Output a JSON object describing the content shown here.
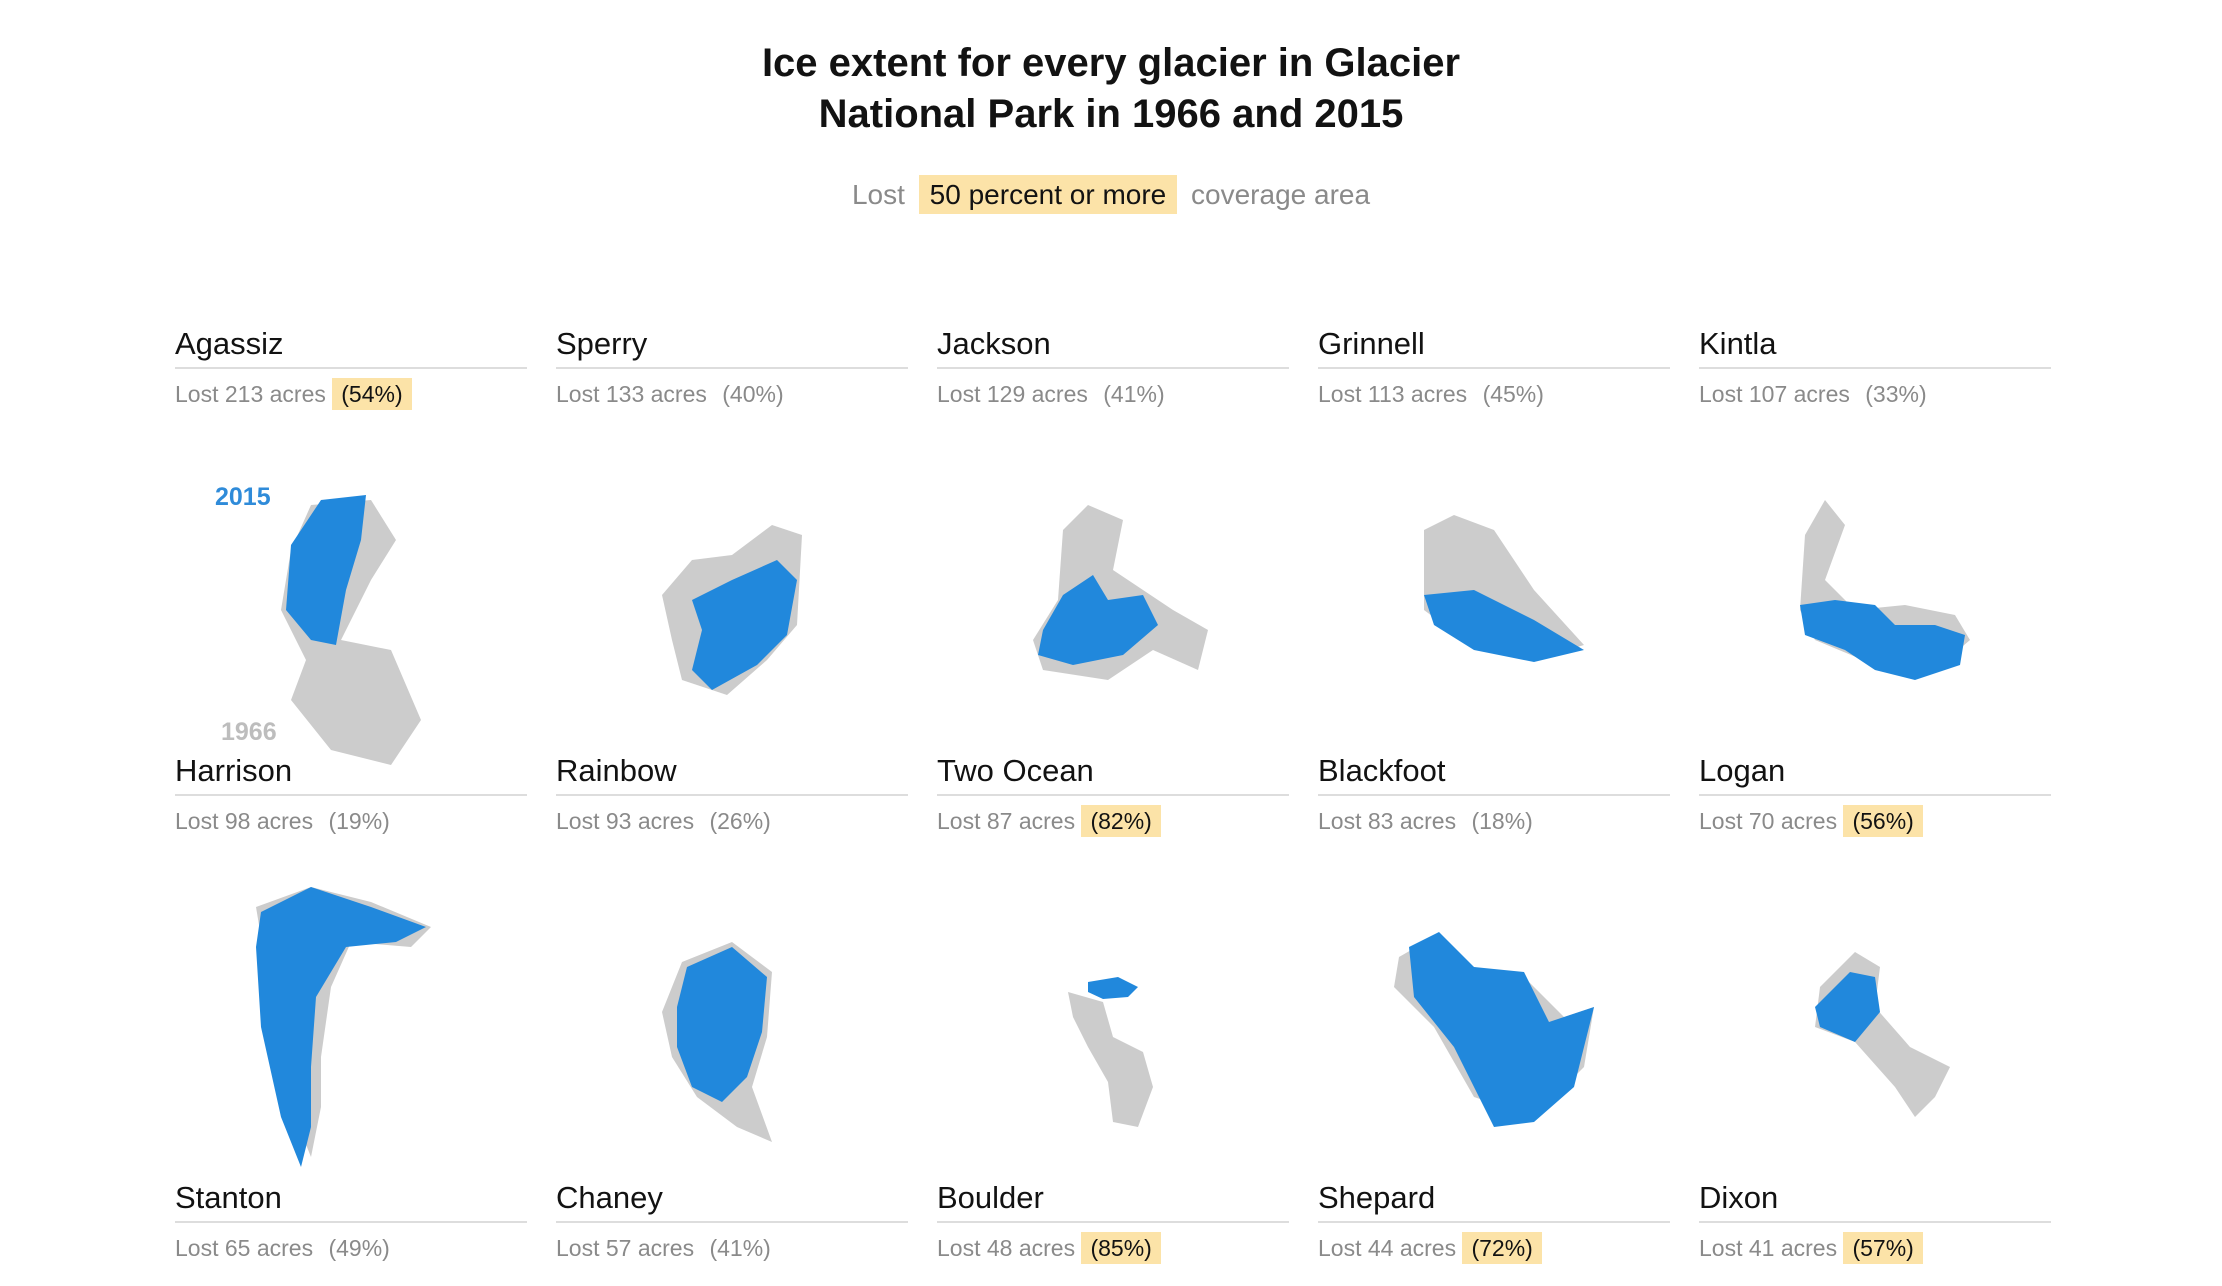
{
  "title": {
    "line1": "Ice extent for every glacier in Glacier",
    "line2": "National Park in 1966 and 2015"
  },
  "subtitle": {
    "before": "Lost",
    "highlight": "50 percent or more",
    "after": "coverage area"
  },
  "legend": {
    "year_2015": "2015",
    "year_1966": "1966"
  },
  "colors": {
    "ice_2015": "#2188dc",
    "ice_1966": "#cccccc",
    "highlight": "#fce3a8"
  },
  "chart_data": {
    "type": "table",
    "threshold_percent": 50,
    "glaciers": [
      {
        "name": "Agassiz",
        "lost_acres": 213,
        "lost_percent": 54,
        "lost_text": "Lost 213 acres",
        "percent_text": "(54%)"
      },
      {
        "name": "Sperry",
        "lost_acres": 133,
        "lost_percent": 40,
        "lost_text": "Lost 133 acres",
        "percent_text": "(40%)"
      },
      {
        "name": "Jackson",
        "lost_acres": 129,
        "lost_percent": 41,
        "lost_text": "Lost 129 acres",
        "percent_text": "(41%)"
      },
      {
        "name": "Grinnell",
        "lost_acres": 113,
        "lost_percent": 45,
        "lost_text": "Lost 113 acres",
        "percent_text": "(45%)"
      },
      {
        "name": "Kintla",
        "lost_acres": 107,
        "lost_percent": 33,
        "lost_text": "Lost 107 acres",
        "percent_text": "(33%)"
      },
      {
        "name": "Harrison",
        "lost_acres": 98,
        "lost_percent": 19,
        "lost_text": "Lost 98 acres",
        "percent_text": "(19%)"
      },
      {
        "name": "Rainbow",
        "lost_acres": 93,
        "lost_percent": 26,
        "lost_text": "Lost 93 acres",
        "percent_text": "(26%)"
      },
      {
        "name": "Two Ocean",
        "lost_acres": 87,
        "lost_percent": 82,
        "lost_text": "Lost 87 acres",
        "percent_text": "(82%)"
      },
      {
        "name": "Blackfoot",
        "lost_acres": 83,
        "lost_percent": 18,
        "lost_text": "Lost 83 acres",
        "percent_text": "(18%)"
      },
      {
        "name": "Logan",
        "lost_acres": 70,
        "lost_percent": 56,
        "lost_text": "Lost 70 acres",
        "percent_text": "(56%)"
      },
      {
        "name": "Stanton",
        "lost_acres": 65,
        "lost_percent": 49,
        "lost_text": "Lost 65 acres",
        "percent_text": "(49%)"
      },
      {
        "name": "Chaney",
        "lost_acres": 57,
        "lost_percent": 41,
        "lost_text": "Lost 57 acres",
        "percent_text": "(41%)"
      },
      {
        "name": "Boulder",
        "lost_acres": 48,
        "lost_percent": 85,
        "lost_text": "Lost 48 acres",
        "percent_text": "(85%)"
      },
      {
        "name": "Shepard",
        "lost_acres": 44,
        "lost_percent": 72,
        "lost_text": "Lost 44 acres",
        "percent_text": "(72%)"
      },
      {
        "name": "Dixon",
        "lost_acres": 41,
        "lost_percent": 57,
        "lost_text": "Lost 41 acres",
        "percent_text": "(57%)"
      }
    ]
  }
}
